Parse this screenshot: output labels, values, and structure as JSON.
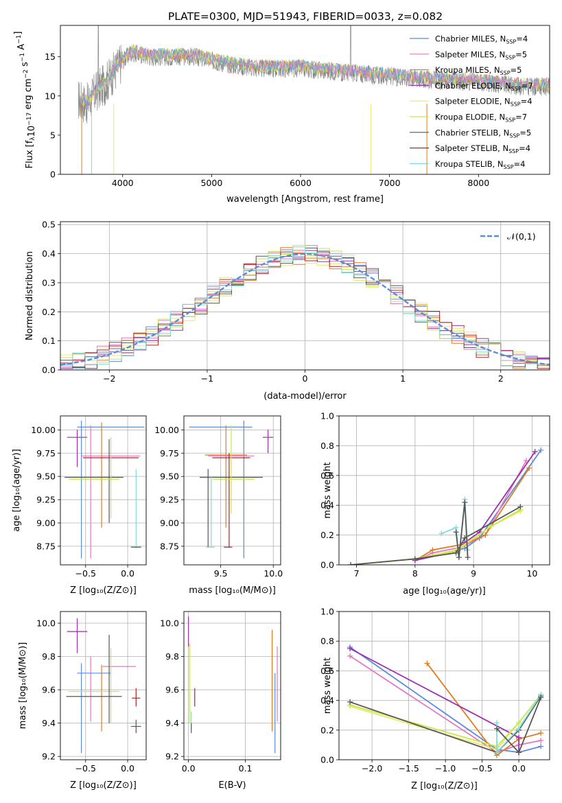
{
  "figure_title": "PLATE=0300, MJD=51943, FIBERID=0033, z=0.082",
  "colors": {
    "chabrier_miles": "#5b8bd9",
    "salpeter_miles": "#e377c2",
    "kroupa_miles": "#e07b22",
    "chabrier_elodie": "#9b2fae",
    "salpeter_elodie": "#e8e870",
    "kroupa_elodie": "#c7e84a",
    "chabrier_stelib": "#555555",
    "salpeter_stelib": "#b22222",
    "kroupa_stelib": "#7fdcdc",
    "data": "#888888",
    "gaussian": "#5b8bd9"
  },
  "legend_entries": [
    {
      "key": "chabrier_miles",
      "label": "Chabrier MILES, N",
      "sub": "SSP",
      "tail": "=4"
    },
    {
      "key": "salpeter_miles",
      "label": "Salpeter MILES, N",
      "sub": "SSP",
      "tail": "=5"
    },
    {
      "key": "kroupa_miles",
      "label": "Kroupa MILES, N",
      "sub": "SSP",
      "tail": "=5"
    },
    {
      "key": "chabrier_elodie",
      "label": "Chabrier ELODIE, N",
      "sub": "SSP",
      "tail": "=7"
    },
    {
      "key": "salpeter_elodie",
      "label": "Salpeter ELODIE, N",
      "sub": "SSP",
      "tail": "=4"
    },
    {
      "key": "kroupa_elodie",
      "label": "Kroupa ELODIE, N",
      "sub": "SSP",
      "tail": "=7"
    },
    {
      "key": "chabrier_stelib",
      "label": "Chabrier STELIB, N",
      "sub": "SSP",
      "tail": "=5"
    },
    {
      "key": "salpeter_stelib",
      "label": "Salpeter STELIB, N",
      "sub": "SSP",
      "tail": "=4"
    },
    {
      "key": "kroupa_stelib",
      "label": "Kroupa STELIB, N",
      "sub": "SSP",
      "tail": "=4"
    }
  ],
  "chart_data": [
    {
      "id": "spectrum",
      "type": "line",
      "title": "PLATE=0300, MJD=51943, FIBERID=0033, z=0.082",
      "xlabel": "wavelength [Angstrom, rest frame]",
      "ylabel_parts": [
        "Flux [f",
        "λ",
        "10",
        "−17",
        " erg cm",
        "−2",
        " s",
        "−1",
        " A",
        "−1",
        "]"
      ],
      "xlim": [
        3300,
        8800
      ],
      "ylim": [
        0,
        19
      ],
      "xticks": [
        4000,
        5000,
        6000,
        7000,
        8000
      ],
      "yticks": [
        0,
        5,
        10,
        15
      ],
      "data_anchors": [
        [
          3400,
          11.5
        ],
        [
          3500,
          9.5
        ],
        [
          3600,
          9.0
        ],
        [
          3700,
          10.5
        ],
        [
          3800,
          11.5
        ],
        [
          3900,
          13.0
        ],
        [
          4000,
          14.5
        ],
        [
          4100,
          15.5
        ],
        [
          4300,
          15.0
        ],
        [
          4500,
          15.0
        ],
        [
          4800,
          15.0
        ],
        [
          5000,
          14.5
        ],
        [
          5200,
          14.0
        ],
        [
          5500,
          13.5
        ],
        [
          6000,
          13.5
        ],
        [
          6500,
          13.0
        ],
        [
          7000,
          12.5
        ],
        [
          7500,
          12.0
        ],
        [
          8000,
          11.8
        ],
        [
          8500,
          11.2
        ]
      ]
    },
    {
      "id": "residuals",
      "type": "histogram",
      "xlabel": "(data-model)/error",
      "ylabel": "Normed distribution",
      "xlim": [
        -2.5,
        2.5
      ],
      "ylim": [
        0,
        0.51
      ],
      "xticks": [
        -2,
        -1,
        0,
        1,
        2
      ],
      "yticks": [
        0.0,
        0.1,
        0.2,
        0.3,
        0.4,
        0.5
      ],
      "bin_width": 0.125,
      "legend": "𝒩(0,1)"
    },
    {
      "id": "age_vs_Z",
      "type": "errorbar",
      "xlabel": "Z [log₁₀(Z/Z⊙)]",
      "ylabel": "age  [log₁₀(age/yr)]",
      "xlim": [
        -0.8,
        0.22
      ],
      "ylim": [
        8.55,
        10.15
      ],
      "xticks": [
        -0.5,
        0.0
      ],
      "yticks": [
        8.75,
        9.0,
        9.25,
        9.5,
        9.75,
        10.0
      ],
      "points": [
        {
          "key": "chabrier_miles",
          "x": -0.2,
          "xerr": 0.4,
          "y": 10.03,
          "yerr_lo": 0.03,
          "yerr_hi": 0.03,
          "v_x": -0.55,
          "v_lo": 8.62,
          "v_hi": 10.1
        },
        {
          "key": "chabrier_elodie",
          "x": -0.6,
          "xerr": 0.12,
          "y": 9.92,
          "v_x": -0.6,
          "v_lo": 9.6,
          "v_hi": 10.0
        },
        {
          "key": "kroupa_miles",
          "x": -0.3,
          "v_x": -0.31,
          "y": 9.73,
          "v_lo": 8.95,
          "v_hi": 10.08
        },
        {
          "key": "salpeter_miles",
          "x": -0.2,
          "xerr": 0.35,
          "y": 9.72,
          "v_x": -0.44,
          "v_lo": 8.62,
          "v_hi": 10.05
        },
        {
          "key": "salpeter_stelib",
          "x": -0.2,
          "xerr": 0.33,
          "y": 9.7
        },
        {
          "key": "chabrier_stelib",
          "x": -0.4,
          "xerr": 0.35,
          "y": 9.49,
          "v_x": -0.22,
          "v_lo": 9.0,
          "v_hi": 9.9
        },
        {
          "key": "kroupa_elodie",
          "x": -0.4,
          "xerr": 0.3,
          "y": 9.47,
          "v_x": -0.2,
          "v_lo": 9.05,
          "v_hi": 9.92
        },
        {
          "key": "kroupa_stelib",
          "x": 0.1,
          "xerr": 0.06,
          "y": 8.74,
          "v_x": 0.1,
          "v_lo": 8.73,
          "v_hi": 9.58
        },
        {
          "key": "chabrier_stelib",
          "x": 0.1,
          "xerr": 0.06,
          "y": 8.74
        }
      ]
    },
    {
      "id": "age_vs_mass",
      "type": "errorbar",
      "xlabel": "mass [log₁₀(M/M⊙)]",
      "xlim": [
        9.15,
        10.07
      ],
      "ylim": [
        8.55,
        10.15
      ],
      "xticks": [
        9.5,
        10.0
      ],
      "yticks": [
        8.75,
        9.0,
        9.25,
        9.5,
        9.75,
        10.0
      ],
      "points": [
        {
          "key": "chabrier_miles",
          "x": 9.5,
          "xerr": 0.3,
          "y": 10.03,
          "v_x": 9.72,
          "v_lo": 8.62,
          "v_hi": 10.1
        },
        {
          "key": "chabrier_elodie",
          "x": 9.95,
          "xerr": 0.05,
          "y": 9.92,
          "v_x": 9.95,
          "v_lo": 9.75,
          "v_hi": 10.0
        },
        {
          "key": "kroupa_miles",
          "x": 9.55,
          "xerr": 0.2,
          "y": 9.73,
          "v_x": 9.55,
          "v_lo": 8.95,
          "v_hi": 10.05
        },
        {
          "key": "salpeter_miles",
          "x": 9.6,
          "xerr": 0.22,
          "y": 9.72
        },
        {
          "key": "salpeter_stelib",
          "x": 9.6,
          "xerr": 0.18,
          "y": 9.7,
          "v_x": 9.58,
          "v_lo": 8.74,
          "v_hi": 9.75
        },
        {
          "key": "chabrier_stelib",
          "x": 9.6,
          "xerr": 0.3,
          "y": 9.49,
          "v_x": 9.38,
          "v_lo": 8.74,
          "v_hi": 9.58
        },
        {
          "key": "kroupa_elodie",
          "x": 9.62,
          "xerr": 0.2,
          "y": 9.47,
          "v_x": 9.6,
          "v_lo": 9.1,
          "v_hi": 10.05
        },
        {
          "key": "kroupa_stelib",
          "x": 9.4,
          "xerr": 0.04,
          "y": 8.74,
          "v_x": 9.41,
          "v_lo": 8.74,
          "v_hi": 9.5
        },
        {
          "key": "salpeter_stelib",
          "x": 9.57,
          "xerr": 0.04,
          "y": 8.74
        }
      ]
    },
    {
      "id": "massweight_vs_age",
      "type": "line",
      "xlabel": "age  [log₁₀(age/yr)]",
      "ylabel": "mass weight",
      "xlim": [
        6.7,
        10.3
      ],
      "ylim": [
        0,
        1.0
      ],
      "xticks": [
        7,
        8,
        9,
        10
      ],
      "yticks": [
        0.0,
        0.2,
        0.4,
        0.6,
        0.8,
        1.0
      ],
      "series": [
        {
          "key": "chabrier_miles",
          "x": [
            8.0,
            8.85,
            9.1,
            10.15
          ],
          "y": [
            0.03,
            0.11,
            0.18,
            0.77
          ]
        },
        {
          "key": "salpeter_miles",
          "x": [
            8.0,
            8.3,
            8.8,
            9.2,
            9.9
          ],
          "y": [
            0.03,
            0.08,
            0.12,
            0.2,
            0.7
          ]
        },
        {
          "key": "kroupa_miles",
          "x": [
            8.0,
            8.3,
            8.85,
            9.2,
            9.95
          ],
          "y": [
            0.03,
            0.1,
            0.14,
            0.2,
            0.65
          ]
        },
        {
          "key": "chabrier_elodie",
          "x": [
            8.0,
            8.7,
            8.85,
            9.1,
            10.05
          ],
          "y": [
            0.03,
            0.09,
            0.15,
            0.22,
            0.76
          ]
        },
        {
          "key": "salpeter_elodie",
          "x": [
            6.9,
            8.0,
            8.7,
            9.3,
            9.8
          ],
          "y": [
            0.0,
            0.04,
            0.1,
            0.26,
            0.36
          ]
        },
        {
          "key": "kroupa_elodie",
          "x": [
            6.9,
            8.0,
            8.7,
            9.3,
            9.8
          ],
          "y": [
            0.0,
            0.04,
            0.09,
            0.26,
            0.37
          ]
        },
        {
          "key": "chabrier_stelib",
          "x": [
            6.9,
            8.0,
            8.7,
            8.85,
            9.8
          ],
          "y": [
            0.0,
            0.04,
            0.08,
            0.18,
            0.39
          ]
        },
        {
          "key": "kroupa_stelib",
          "x": [
            8.45,
            8.7,
            8.75,
            8.85,
            8.9
          ],
          "y": [
            0.21,
            0.25,
            0.05,
            0.44,
            0.1
          ]
        },
        {
          "key": "chabrier_stelib",
          "x": [
            8.7,
            8.75,
            8.85,
            8.9
          ],
          "y": [
            0.22,
            0.05,
            0.42,
            0.05
          ]
        }
      ]
    },
    {
      "id": "mass_vs_Z",
      "type": "errorbar",
      "xlabel": "Z [log₁₀(Z/Z⊙)]",
      "ylabel": "mass [log₁₀(M/M⊙)]",
      "xlim": [
        -0.8,
        0.22
      ],
      "ylim": [
        9.18,
        10.07
      ],
      "xticks": [
        -0.5,
        0.0
      ],
      "yticks": [
        9.2,
        9.4,
        9.6,
        9.8,
        10.0
      ],
      "points": [
        {
          "key": "chabrier_elodie",
          "x": -0.6,
          "xerr": 0.12,
          "y": 9.95,
          "v_x": -0.6,
          "v_lo": 9.82,
          "v_hi": 10.03
        },
        {
          "key": "salpeter_miles",
          "x": -0.1,
          "xerr": 0.2,
          "y": 9.74,
          "v_x": -0.44,
          "v_lo": 9.41,
          "v_hi": 9.8
        },
        {
          "key": "chabrier_miles",
          "x": -0.4,
          "xerr": 0.2,
          "y": 9.7,
          "v_x": -0.55,
          "v_lo": 9.22,
          "v_hi": 9.76
        },
        {
          "key": "kroupa_miles",
          "x": -0.3,
          "v_x": -0.31,
          "y": 9.6,
          "v_lo": 9.35,
          "v_hi": 9.75
        },
        {
          "key": "kroupa_elodie",
          "x": -0.4,
          "xerr": 0.3,
          "y": 9.59,
          "v_x": -0.2,
          "v_lo": 9.4,
          "v_hi": 9.85
        },
        {
          "key": "chabrier_stelib",
          "x": -0.4,
          "xerr": 0.33,
          "y": 9.56,
          "v_x": -0.22,
          "v_lo": 9.4,
          "v_hi": 9.93
        },
        {
          "key": "salpeter_stelib",
          "x": 0.1,
          "xerr": 0.05,
          "y": 9.55,
          "v_x": 0.1,
          "v_lo": 9.5,
          "v_hi": 9.61
        },
        {
          "key": "kroupa_stelib",
          "x": 0.07,
          "xerr": 0.05,
          "y": 9.4
        },
        {
          "key": "chabrier_stelib",
          "x": 0.1,
          "xerr": 0.06,
          "y": 9.38,
          "v_x": 0.1,
          "v_lo": 9.34,
          "v_hi": 9.42
        }
      ]
    },
    {
      "id": "mass_vs_ebv",
      "type": "errorbar",
      "xlabel": "E(B-V)",
      "xlim": [
        -0.008,
        0.162
      ],
      "ylim": [
        9.18,
        10.07
      ],
      "xticks": [
        0.0,
        0.1
      ],
      "yticks": [
        9.2,
        9.4,
        9.6,
        9.8,
        10.0
      ],
      "points": [
        {
          "key": "chabrier_elodie",
          "v_x": 0.0,
          "v_lo": 9.86,
          "v_hi": 10.04
        },
        {
          "key": "kroupa_elodie",
          "v_x": 0.002,
          "v_lo": 9.4,
          "v_hi": 9.88
        },
        {
          "key": "kroupa_stelib",
          "v_x": 0.005,
          "v_lo": 9.36,
          "v_hi": 9.47
        },
        {
          "key": "chabrier_stelib",
          "v_x": 0.005,
          "v_lo": 9.34,
          "v_hi": 9.4
        },
        {
          "key": "salpeter_stelib",
          "v_x": 0.011,
          "v_lo": 9.5,
          "v_hi": 9.61
        },
        {
          "key": "kroupa_miles",
          "v_x": 0.147,
          "v_lo": 9.35,
          "v_hi": 9.96
        },
        {
          "key": "chabrier_miles",
          "v_x": 0.152,
          "v_lo": 9.22,
          "v_hi": 9.7
        },
        {
          "key": "salpeter_miles",
          "v_x": 0.156,
          "v_lo": 9.41,
          "v_hi": 9.86
        }
      ]
    },
    {
      "id": "massweight_vs_Z",
      "type": "line",
      "xlabel": "Z [log₁₀(Z/Z⊙)]",
      "ylabel": "mass weight",
      "xlim": [
        -2.45,
        0.42
      ],
      "ylim": [
        0,
        1.0
      ],
      "xticks": [
        -2.0,
        -1.5,
        -1.0,
        -0.5,
        0.0
      ],
      "yticks": [
        0.0,
        0.2,
        0.4,
        0.6,
        0.8,
        1.0
      ],
      "series": [
        {
          "key": "chabrier_miles",
          "x": [
            -2.3,
            -0.3,
            0.0,
            0.3
          ],
          "y": [
            0.76,
            0.07,
            0.05,
            0.09
          ]
        },
        {
          "key": "salpeter_miles",
          "x": [
            -2.3,
            -0.3,
            0.0,
            0.3
          ],
          "y": [
            0.7,
            0.05,
            0.1,
            0.13
          ]
        },
        {
          "key": "kroupa_miles",
          "x": [
            -1.25,
            -0.3,
            0.0,
            0.3
          ],
          "y": [
            0.65,
            0.03,
            0.14,
            0.18
          ]
        },
        {
          "key": "chabrier_elodie",
          "x": [
            -2.3,
            0.0,
            0.0
          ],
          "y": [
            0.75,
            0.15,
            0.05
          ]
        },
        {
          "key": "salpeter_elodie",
          "x": [
            -2.3,
            -0.3,
            0.0
          ],
          "y": [
            0.36,
            0.07,
            0.25
          ]
        },
        {
          "key": "kroupa_elodie",
          "x": [
            -2.3,
            -0.3,
            0.0,
            0.3
          ],
          "y": [
            0.37,
            0.09,
            0.25,
            0.44
          ]
        },
        {
          "key": "chabrier_stelib",
          "x": [
            -2.3,
            -0.3,
            0.0,
            0.3
          ],
          "y": [
            0.39,
            0.05,
            0.2,
            0.43
          ]
        },
        {
          "key": "kroupa_stelib",
          "x": [
            -0.3,
            -0.3,
            0.0,
            0.3
          ],
          "y": [
            0.25,
            0.05,
            0.21,
            0.44
          ]
        },
        {
          "key": "chabrier_stelib",
          "x": [
            -0.3,
            0.0,
            0.3
          ],
          "y": [
            0.21,
            0.05,
            0.42
          ]
        }
      ]
    }
  ]
}
